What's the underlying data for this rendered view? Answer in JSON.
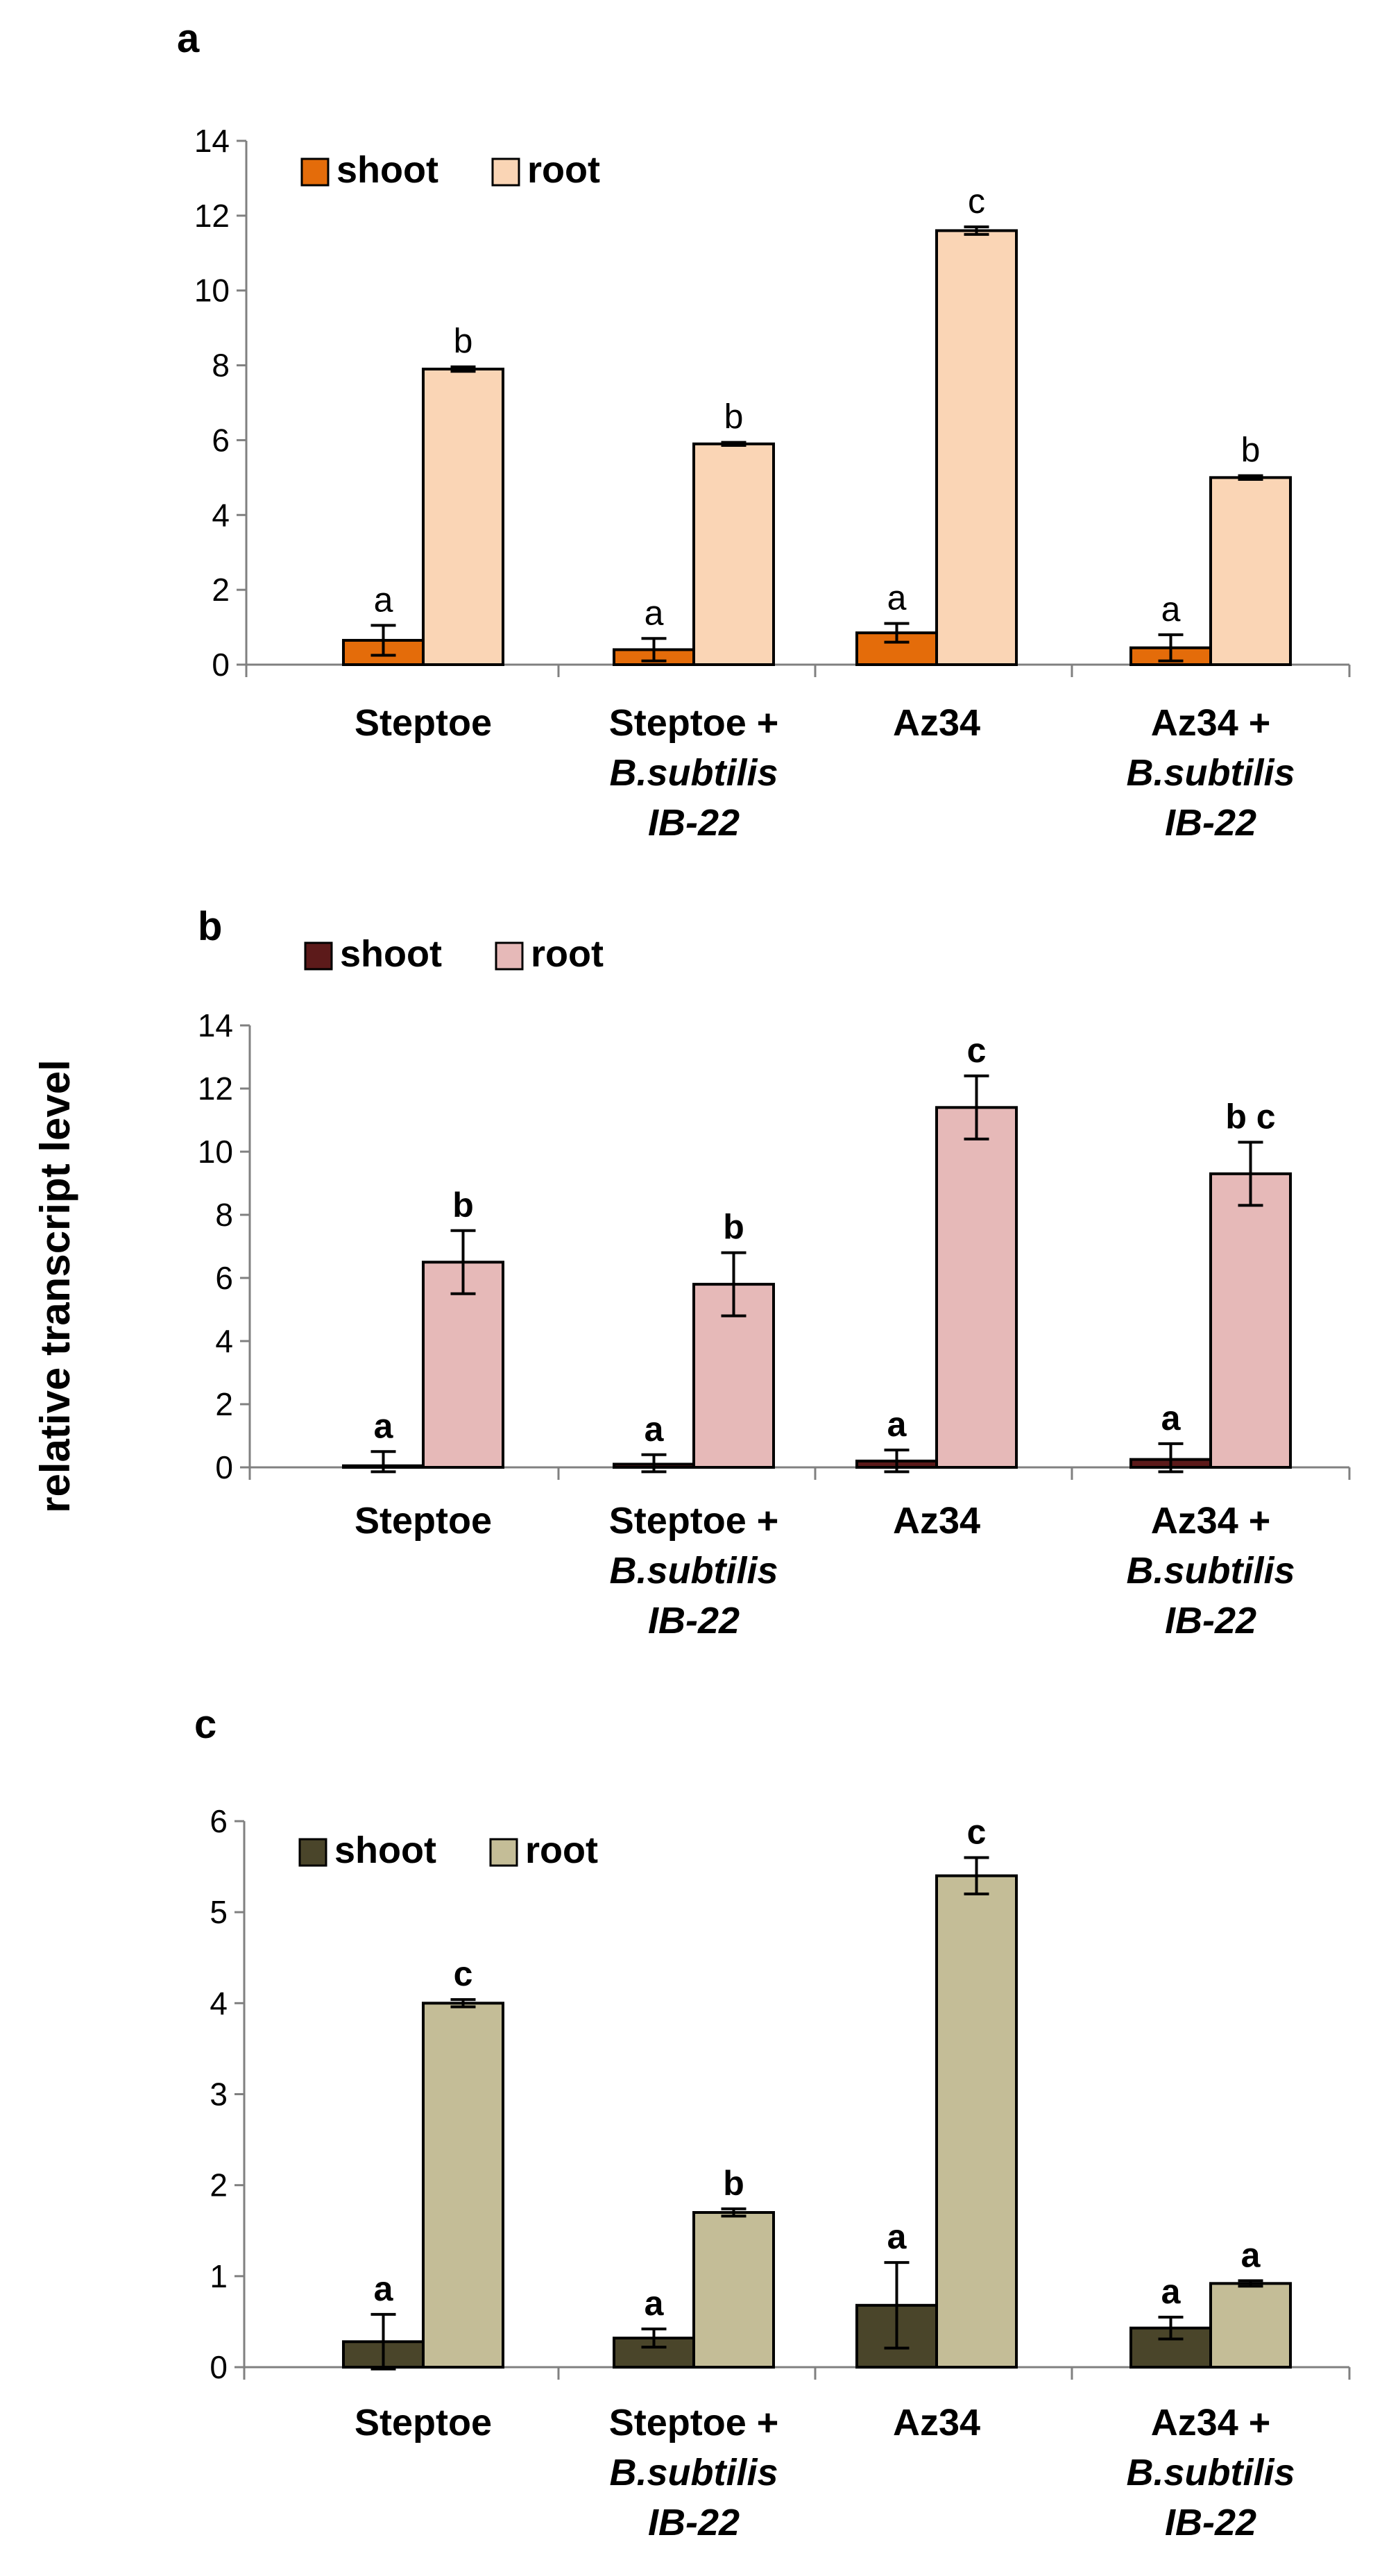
{
  "figure": {
    "ylabel": "relative transcript level"
  },
  "chart_data": [
    {
      "panel": "a",
      "type": "bar",
      "categories": [
        [
          "Steptoe"
        ],
        [
          "Steptoe +",
          "B.subtilis",
          "IB-22"
        ],
        [
          "Az34"
        ],
        [
          "Az34 +",
          "B.subtilis",
          "IB-22"
        ]
      ],
      "ylim": [
        0,
        14
      ],
      "yticks": [
        0,
        2,
        4,
        6,
        8,
        10,
        12,
        14
      ],
      "grid": false,
      "legend": "top-left",
      "series": [
        {
          "name": "shoot",
          "color": "#E46C0A",
          "values": [
            0.65,
            0.4,
            0.85,
            0.45
          ],
          "errors": [
            0.4,
            0.3,
            0.25,
            0.35
          ],
          "letters": [
            "a",
            "a",
            "a",
            "a"
          ]
        },
        {
          "name": "root",
          "color": "#FAD5B5",
          "values": [
            7.9,
            5.9,
            11.6,
            5.0
          ],
          "errors": [
            0.06,
            0.04,
            0.1,
            0.05
          ],
          "letters": [
            "b",
            "b",
            "c",
            "b"
          ]
        }
      ]
    },
    {
      "panel": "b",
      "type": "bar",
      "categories": [
        [
          "Steptoe"
        ],
        [
          "Steptoe +",
          "B.subtilis",
          "IB-22"
        ],
        [
          "Az34"
        ],
        [
          "Az34 +",
          "B.subtilis",
          "IB-22"
        ]
      ],
      "ylim": [
        0,
        14
      ],
      "yticks": [
        0,
        2,
        4,
        6,
        8,
        10,
        12,
        14
      ],
      "grid": false,
      "legend": "top-left",
      "series": [
        {
          "name": "shoot",
          "color": "#5C1A1A",
          "values": [
            0.05,
            0.1,
            0.2,
            0.25
          ],
          "errors": [
            0.45,
            0.3,
            0.35,
            0.5
          ],
          "letters": [
            "a",
            "a",
            "a",
            "a"
          ]
        },
        {
          "name": "root",
          "color": "#E6B9B8",
          "values": [
            6.5,
            5.8,
            11.4,
            9.3
          ],
          "errors": [
            1.0,
            1.0,
            1.0,
            1.0
          ],
          "letters": [
            "b",
            "b",
            "c",
            "b c"
          ]
        }
      ]
    },
    {
      "panel": "c",
      "type": "bar",
      "categories": [
        [
          "Steptoe"
        ],
        [
          "Steptoe +",
          "B.subtilis",
          "IB-22"
        ],
        [
          "Az34"
        ],
        [
          "Az34 +",
          "B.subtilis",
          "IB-22"
        ]
      ],
      "ylim": [
        0,
        6
      ],
      "yticks": [
        0,
        1,
        2,
        3,
        4,
        5,
        6
      ],
      "grid": false,
      "legend": "top-left",
      "series": [
        {
          "name": "shoot",
          "color": "#4A452A",
          "values": [
            0.28,
            0.32,
            0.68,
            0.43
          ],
          "errors": [
            0.3,
            0.1,
            0.47,
            0.12
          ],
          "letters": [
            "a",
            "a",
            "a",
            "a"
          ]
        },
        {
          "name": "root",
          "color": "#C4BD97",
          "values": [
            4.0,
            1.7,
            5.4,
            0.92
          ],
          "errors": [
            0.04,
            0.04,
            0.2,
            0.03
          ],
          "letters": [
            "c",
            "b",
            "c",
            "a"
          ]
        }
      ]
    }
  ]
}
